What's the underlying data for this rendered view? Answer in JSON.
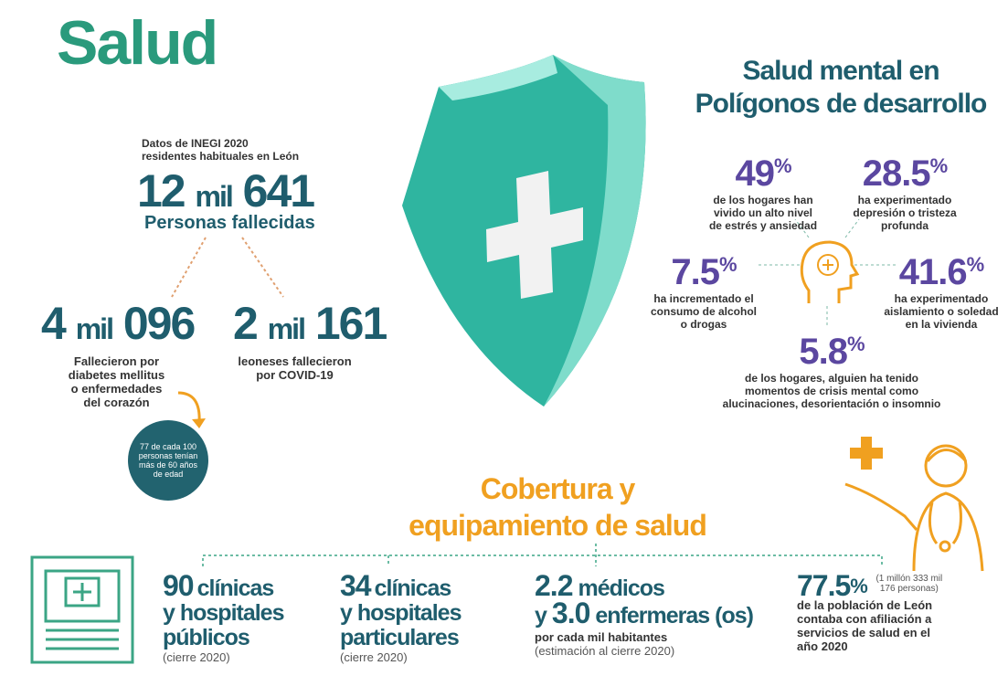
{
  "title": "Salud",
  "deaths": {
    "source": [
      "Datos de INEGI 2020",
      "residentes habituales en León"
    ],
    "total": [
      "12",
      "mil",
      "641"
    ],
    "total_label": "Personas fallecidas",
    "diabetes": {
      "number": [
        "4",
        "mil",
        "096"
      ],
      "lines": [
        "Fallecieron por",
        "diabetes mellitus",
        "o enfermedades",
        "del corazón"
      ],
      "note": "77 de cada 100 personas tenían más de 60 años de edad"
    },
    "covid": {
      "number": [
        "2",
        "mil",
        "161"
      ],
      "lines": [
        "leoneses fallecieron",
        "por COVID-19"
      ]
    }
  },
  "mental": {
    "title": [
      "Salud mental en",
      "Polígonos de desarrollo"
    ],
    "stats": [
      {
        "value": "49",
        "unit": "%",
        "lines": [
          "de los hogares han",
          "vivido un alto nivel",
          "de estrés y ansiedad"
        ]
      },
      {
        "value": "28.5",
        "unit": "%",
        "lines": [
          "ha experimentado",
          "depresión o tristeza",
          "profunda"
        ]
      },
      {
        "value": "7.5",
        "unit": "%",
        "lines": [
          "ha incrementado el",
          "consumo de alcohol",
          "o drogas"
        ]
      },
      {
        "value": "41.6",
        "unit": "%",
        "lines": [
          "ha experimentado",
          "aislamiento o soledad",
          "en la vivienda"
        ]
      },
      {
        "value": "5.8",
        "unit": "%",
        "lines": [
          "de los hogares, alguien ha tenido",
          "momentos de crisis mental como",
          "alucinaciones, desorientación o insomnio"
        ]
      }
    ]
  },
  "coverage": {
    "title": [
      "Cobertura y",
      "equipamiento de salud"
    ],
    "items": [
      {
        "number": "90",
        "lines": [
          "clínicas",
          "y hospitales",
          "públicos"
        ],
        "note": "(cierre 2020)"
      },
      {
        "number": "34",
        "lines": [
          "clínicas",
          "y hospitales",
          "particulares"
        ],
        "note": "(cierre 2020)"
      },
      {
        "number": "2.2",
        "lines": [
          "médicos",
          "y",
          "3.0",
          "enfermeras (os)"
        ],
        "sub": "por cada mil habitantes",
        "note": "(estimación al cierre 2020)"
      },
      {
        "number": "77.5",
        "unit": "%",
        "note": "(1 millón 333 mil 176 personas)",
        "lines": [
          "de la población de León",
          "contaba con afiliación a",
          "servicios de salud en el",
          "año 2020"
        ]
      }
    ]
  }
}
